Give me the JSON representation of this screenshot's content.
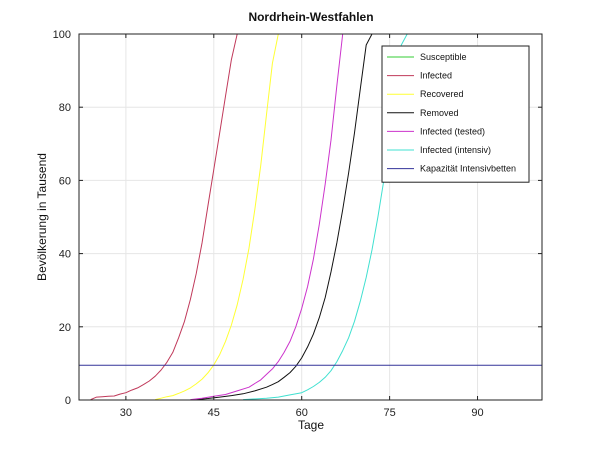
{
  "chart_data": {
    "type": "line",
    "title": "Nordrhein-Westfahlen",
    "xlabel": "Tage",
    "ylabel": "Bevölkerung in Tausend",
    "xlim": [
      22,
      101
    ],
    "ylim": [
      0,
      100
    ],
    "xticks": [
      30,
      45,
      60,
      75,
      90
    ],
    "yticks": [
      0,
      20,
      40,
      60,
      80,
      100
    ],
    "grid": true,
    "legend_position": "top-right",
    "series": [
      {
        "name": "Susceptible",
        "color": "#33cc33",
        "x": [],
        "y": []
      },
      {
        "name": "Infected",
        "color": "#c0395a",
        "x": [
          24,
          25,
          26,
          27,
          28,
          29,
          30,
          31,
          32,
          33,
          34,
          35,
          36,
          37,
          38,
          39,
          40,
          41,
          42,
          43,
          44,
          45,
          46,
          47,
          48,
          49,
          50
        ],
        "y": [
          0.1,
          0.8,
          0.9,
          1.0,
          1.1,
          1.6,
          2.0,
          2.7,
          3.3,
          4.2,
          5.2,
          6.5,
          8.2,
          10.3,
          13.0,
          17.0,
          21.5,
          27.5,
          34.5,
          43.0,
          53.0,
          63.0,
          73.0,
          83.0,
          93.0,
          100.0,
          100.0
        ]
      },
      {
        "name": "Recovered",
        "color": "#ffff33",
        "x": [
          35,
          36,
          37,
          38,
          39,
          40,
          41,
          42,
          43,
          44,
          45,
          46,
          47,
          48,
          49,
          50,
          51,
          52,
          53,
          54,
          55,
          56
        ],
        "y": [
          0.1,
          0.5,
          0.9,
          1.2,
          1.8,
          2.5,
          3.3,
          4.4,
          5.7,
          7.4,
          9.6,
          12.4,
          16.0,
          20.5,
          26.0,
          33.0,
          41.5,
          52.0,
          64.0,
          78.0,
          92.0,
          100.0
        ]
      },
      {
        "name": "Removed",
        "color": "#111111",
        "x": [
          42,
          44,
          46,
          48,
          50,
          52,
          54,
          55,
          56,
          57,
          58,
          59,
          60,
          61,
          62,
          63,
          64,
          65,
          66,
          67,
          68,
          69,
          70,
          71,
          72
        ],
        "y": [
          0.1,
          0.4,
          0.8,
          1.2,
          1.7,
          2.5,
          3.5,
          4.2,
          5.0,
          6.2,
          7.5,
          9.2,
          11.5,
          14.5,
          18.0,
          22.5,
          28.0,
          35.0,
          43.0,
          52.0,
          62.0,
          73.0,
          85.0,
          97.0,
          100.0
        ]
      },
      {
        "name": "Infected (tested)",
        "color": "#cc33cc",
        "x": [
          41,
          43,
          45,
          47,
          49,
          51,
          52,
          53,
          54,
          55,
          56,
          57,
          58,
          59,
          60,
          61,
          62,
          63,
          64,
          65,
          66,
          67
        ],
        "y": [
          0.1,
          0.5,
          1.0,
          1.5,
          2.5,
          3.5,
          4.5,
          5.5,
          7.0,
          8.5,
          10.5,
          13.0,
          16.0,
          20.0,
          25.0,
          31.0,
          38.5,
          48.0,
          59.0,
          71.0,
          86.0,
          100.0
        ]
      },
      {
        "name": "Infected (intensiv)",
        "color": "#40e0d0",
        "x": [
          50,
          54,
          56,
          58,
          60,
          61,
          62,
          63,
          64,
          65,
          66,
          67,
          68,
          69,
          70,
          71,
          72,
          73,
          74,
          75,
          76,
          77,
          78
        ],
        "y": [
          0.1,
          0.5,
          0.8,
          1.4,
          2.0,
          2.8,
          3.7,
          4.8,
          6.2,
          8.0,
          10.5,
          13.5,
          17.0,
          21.5,
          27.0,
          33.5,
          41.0,
          50.0,
          60.0,
          72.0,
          85.0,
          97.0,
          100.0
        ]
      },
      {
        "name": "Kapazität Intensivbetten",
        "color": "#333399",
        "x": [
          22,
          101
        ],
        "y": [
          9.5,
          9.5
        ]
      }
    ]
  }
}
